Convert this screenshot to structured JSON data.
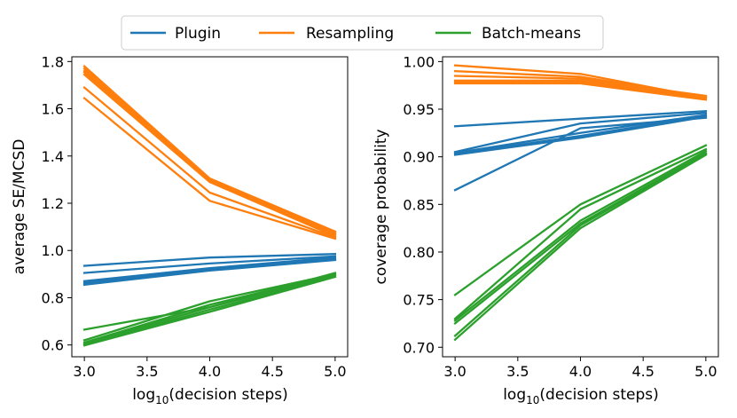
{
  "legend": {
    "placement": "top-center",
    "entries": [
      {
        "label": "Plugin",
        "color": "#1f77b4"
      },
      {
        "label": "Resampling",
        "color": "#ff7f0e"
      },
      {
        "label": "Batch-means",
        "color": "#2ca02c"
      }
    ]
  },
  "chart_data": [
    {
      "type": "line",
      "title": "",
      "xlabel_parts": {
        "prefix": "log",
        "sub": "10",
        "suffix": "(decision steps)"
      },
      "ylabel": "average SE/MCSD",
      "x": [
        3.0,
        4.0,
        5.0
      ],
      "xlim": [
        2.9,
        5.1
      ],
      "ylim": [
        0.55,
        1.82
      ],
      "xticks": [
        "3.0",
        "3.5",
        "4.0",
        "4.5",
        "5.0"
      ],
      "yticks": [
        "0.6",
        "0.8",
        "1.0",
        "1.2",
        "1.4",
        "1.6",
        "1.8"
      ],
      "grid": false,
      "series": [
        {
          "name": "Resampling",
          "color": "#ff7f0e",
          "lines": [
            [
              1.78,
              1.305,
              1.08
            ],
            [
              1.77,
              1.3,
              1.075
            ],
            [
              1.76,
              1.298,
              1.07
            ],
            [
              1.755,
              1.295,
              1.065
            ],
            [
              1.745,
              1.29,
              1.06
            ],
            [
              1.69,
              1.245,
              1.055
            ],
            [
              1.645,
              1.21,
              1.05
            ]
          ]
        },
        {
          "name": "Plugin",
          "color": "#1f77b4",
          "lines": [
            [
              0.935,
              0.97,
              0.985
            ],
            [
              0.905,
              0.945,
              0.975
            ],
            [
              0.87,
              0.925,
              0.97
            ],
            [
              0.865,
              0.92,
              0.965
            ],
            [
              0.86,
              0.92,
              0.965
            ],
            [
              0.855,
              0.915,
              0.96
            ]
          ]
        },
        {
          "name": "Batch-means",
          "color": "#2ca02c",
          "lines": [
            [
              0.665,
              0.76,
              0.905
            ],
            [
              0.62,
              0.785,
              0.9
            ],
            [
              0.61,
              0.77,
              0.9
            ],
            [
              0.605,
              0.76,
              0.895
            ],
            [
              0.6,
              0.75,
              0.89
            ],
            [
              0.598,
              0.74,
              0.888
            ]
          ]
        }
      ]
    },
    {
      "type": "line",
      "title": "",
      "xlabel_parts": {
        "prefix": "log",
        "sub": "10",
        "suffix": "(decision steps)"
      },
      "ylabel": "coverage probability",
      "x": [
        3.0,
        4.0,
        5.0
      ],
      "xlim": [
        2.9,
        5.1
      ],
      "ylim": [
        0.69,
        1.005
      ],
      "xticks": [
        "3.0",
        "3.5",
        "4.0",
        "4.5",
        "5.0"
      ],
      "yticks": [
        "0.70",
        "0.75",
        "0.80",
        "0.85",
        "0.90",
        "0.95",
        "1.00"
      ],
      "grid": false,
      "series": [
        {
          "name": "Resampling",
          "color": "#ff7f0e",
          "lines": [
            [
              0.996,
              0.987,
              0.962
            ],
            [
              0.99,
              0.984,
              0.963
            ],
            [
              0.985,
              0.982,
              0.964
            ],
            [
              0.98,
              0.98,
              0.963
            ],
            [
              0.979,
              0.979,
              0.962
            ],
            [
              0.978,
              0.978,
              0.961
            ],
            [
              0.977,
              0.977,
              0.96
            ]
          ]
        },
        {
          "name": "Plugin",
          "color": "#1f77b4",
          "lines": [
            [
              0.932,
              0.94,
              0.948
            ],
            [
              0.905,
              0.935,
              0.946
            ],
            [
              0.904,
              0.925,
              0.944
            ],
            [
              0.903,
              0.922,
              0.943
            ],
            [
              0.902,
              0.92,
              0.942
            ],
            [
              0.865,
              0.93,
              0.941
            ]
          ]
        },
        {
          "name": "Batch-means",
          "color": "#2ca02c",
          "lines": [
            [
              0.755,
              0.85,
              0.912
            ],
            [
              0.73,
              0.845,
              0.908
            ],
            [
              0.728,
              0.833,
              0.906
            ],
            [
              0.725,
              0.83,
              0.904
            ],
            [
              0.712,
              0.828,
              0.903
            ],
            [
              0.708,
              0.825,
              0.902
            ]
          ]
        }
      ]
    }
  ]
}
